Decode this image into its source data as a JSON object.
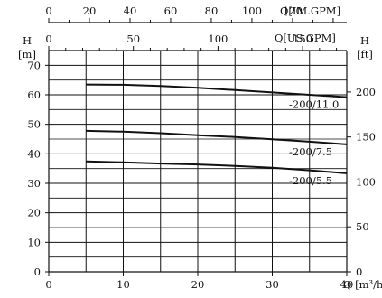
{
  "chart_data": {
    "type": "line",
    "x": [
      5,
      10,
      15,
      20,
      25,
      30,
      35,
      40
    ],
    "series": [
      {
        "name": "-200/11.0",
        "values": [
          63.5,
          63.4,
          63.0,
          62.4,
          61.6,
          60.8,
          60.0,
          59.2
        ]
      },
      {
        "name": "-200/7.5",
        "values": [
          47.8,
          47.5,
          47.0,
          46.3,
          45.7,
          44.9,
          44.1,
          43.2
        ]
      },
      {
        "name": "-200/5.5",
        "values": [
          37.4,
          37.1,
          36.7,
          36.4,
          35.9,
          35.3,
          34.4,
          33.4
        ]
      }
    ],
    "axes": {
      "x_bottom": {
        "label": "Q [m³/h]",
        "lim": [
          0,
          40
        ],
        "ticks": [
          "0",
          "10",
          "20",
          "30",
          "40"
        ]
      },
      "x_top_us": {
        "label": "Q[US.GPM]",
        "lim": [
          0,
          176.1
        ],
        "ticks": [
          "0",
          "50",
          "100",
          "150"
        ]
      },
      "x_top_im": {
        "label": "Q[IM.GPM]",
        "lim": [
          0,
          146.7
        ],
        "ticks": [
          "0",
          "20",
          "40",
          "60",
          "80",
          "100",
          "120"
        ]
      },
      "y_left": {
        "label": "H",
        "unit": "[m]",
        "lim": [
          0,
          75
        ],
        "ticks": [
          "0",
          "10",
          "20",
          "30",
          "40",
          "50",
          "60",
          "70"
        ]
      },
      "y_right": {
        "label": "H",
        "unit": "[ft]",
        "lim": [
          0,
          246.1
        ],
        "ticks": [
          "0",
          "50",
          "100",
          "150",
          "200"
        ]
      }
    },
    "grid": true,
    "legend": "curve-end labels"
  }
}
